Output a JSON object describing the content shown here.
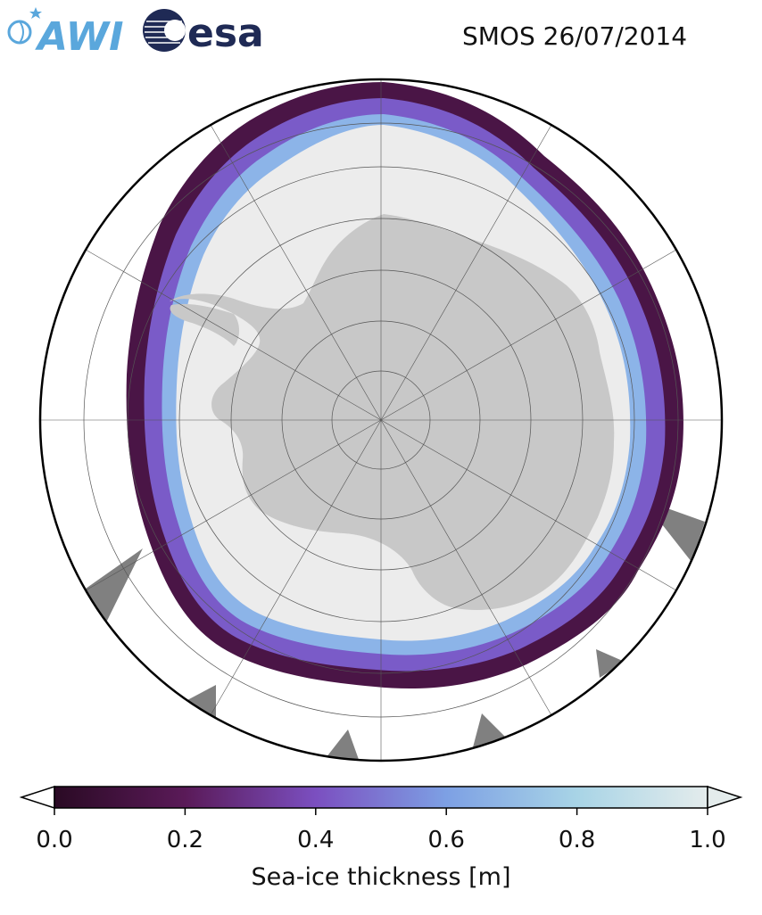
{
  "title": "SMOS 26/07/2014",
  "logos": {
    "awi": {
      "text": "AWI",
      "color": "#5aa7dc"
    },
    "esa": {
      "text": "esa",
      "color": "#1f2a55"
    }
  },
  "map": {
    "projection": "south-polar-stereographic",
    "land_color": "#c8c8c8",
    "no_data_color": "#808080",
    "thick_ice_color": "#ececec",
    "ocean_color": "#ffffff",
    "graticule": true
  },
  "colorbar": {
    "label": "Sea-ice thickness [m]",
    "min": 0.0,
    "max": 1.0,
    "extend": "both",
    "ticks": [
      {
        "value": 0.0,
        "label": "0.0"
      },
      {
        "value": 0.2,
        "label": "0.2"
      },
      {
        "value": 0.4,
        "label": "0.4"
      },
      {
        "value": 0.6,
        "label": "0.6"
      },
      {
        "value": 0.8,
        "label": "0.8"
      },
      {
        "value": 1.0,
        "label": "1.0"
      }
    ],
    "colors": [
      "#2a0a24",
      "#5a1a58",
      "#7b4fc0",
      "#7da0e4",
      "#a8d4e6",
      "#e4ecec"
    ]
  }
}
